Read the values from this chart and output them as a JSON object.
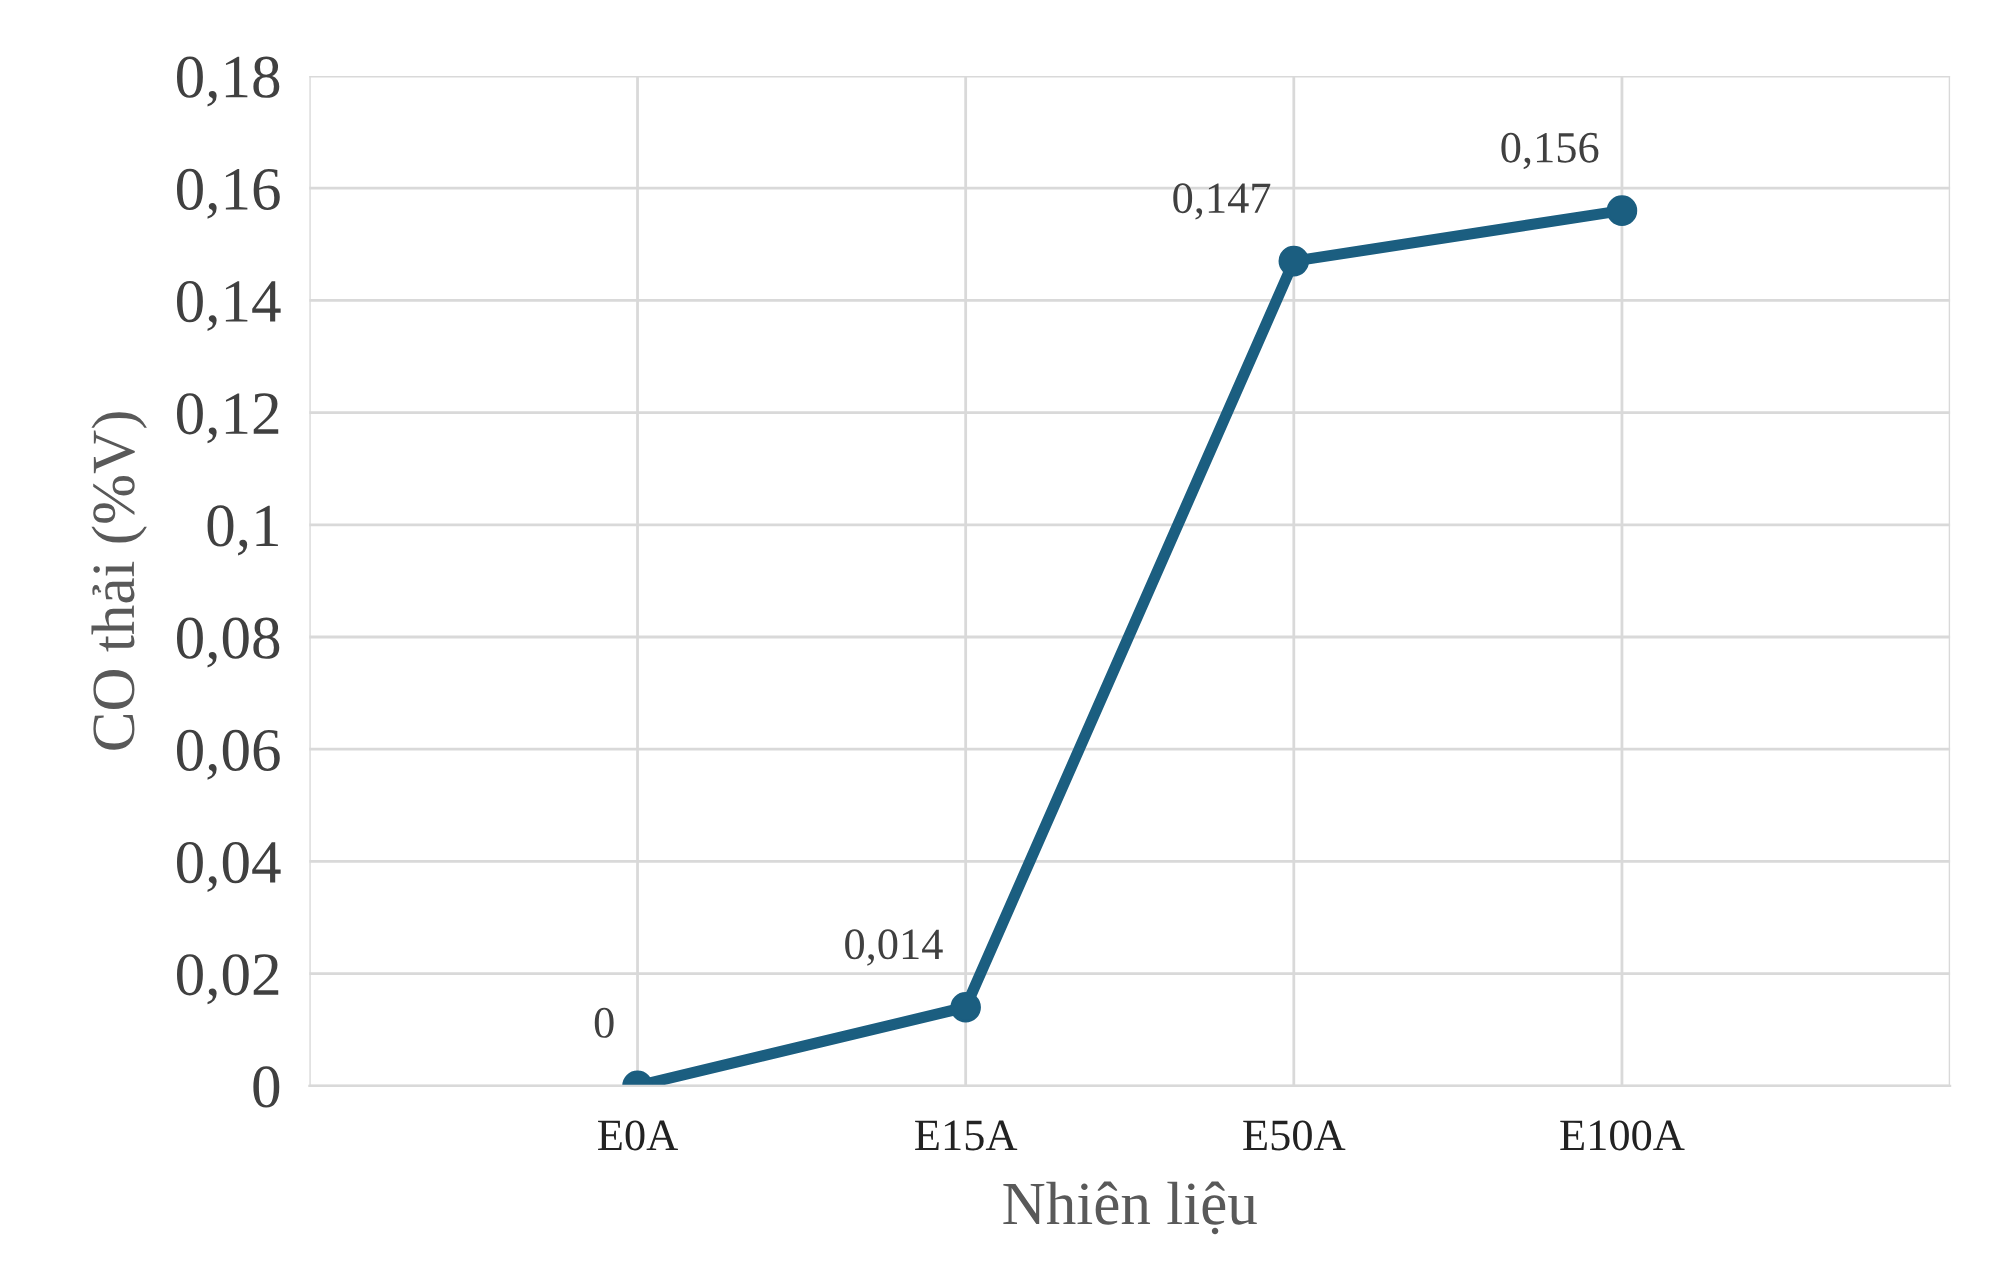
{
  "chart_data": {
    "type": "line",
    "xlabel": "Nhiên liệu",
    "ylabel": "CO thải (%V)",
    "categories": [
      null,
      "E0A",
      "E15A",
      "E50A",
      "E100A",
      null
    ],
    "series": [
      {
        "color": "#1b5e80",
        "values": [
          null,
          0,
          0.014,
          0.147,
          0.156,
          null
        ],
        "value_labels": [
          null,
          "0",
          "0,014",
          "0,147",
          "0,156",
          null
        ]
      }
    ],
    "ylim": [
      0,
      0.18
    ],
    "yticks": [
      0,
      {
        "value": 0.02,
        "label": "0,02"
      },
      {
        "value": 0.04,
        "label": "0,04"
      },
      {
        "value": 0.06,
        "label": "0,06"
      },
      {
        "value": 0.08,
        "label": "0,08"
      },
      {
        "value": 0.1,
        "label": "0,1"
      },
      {
        "value": 0.12,
        "label": "0,12"
      },
      {
        "value": 0.14,
        "label": "0,14"
      },
      {
        "value": 0.16,
        "label": "0,16"
      },
      {
        "value": 0.18,
        "label": "0,18"
      }
    ],
    "grid": true,
    "marker": "circle",
    "line_style": "solid"
  }
}
